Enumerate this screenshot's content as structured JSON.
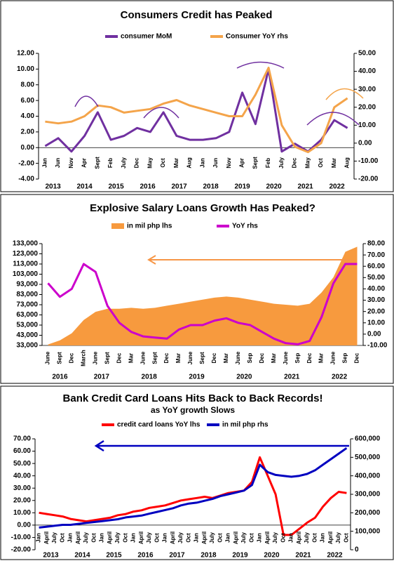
{
  "chart_data": [
    {
      "type": "line",
      "title": "Consumers Credit has Peaked",
      "categories": [
        "Jan",
        "Jun",
        "Nov",
        "Apr",
        "Sept",
        "Feb",
        "July",
        "Dec",
        "May",
        "Oct",
        "Mar",
        "Aug",
        "Jan",
        "Jun",
        "Nov",
        "Apr",
        "Sept",
        "Feb",
        "July",
        "Dec",
        "May",
        "Oct",
        "Mar",
        "Aug"
      ],
      "year_labels": [
        "2013",
        "2014",
        "2015",
        "2016",
        "2017",
        "2018",
        "2019",
        "2020",
        "2021",
        "2022"
      ],
      "series": [
        {
          "name": "consumer MoM",
          "color": "#7030a0",
          "values": [
            0.2,
            1.2,
            -0.5,
            1.5,
            4.5,
            1.0,
            1.5,
            2.5,
            2.0,
            4.5,
            1.5,
            1.0,
            1.0,
            1.2,
            2.0,
            7.0,
            3.0,
            10.0,
            -0.5,
            0.5,
            -0.5,
            1.0,
            3.5,
            2.5
          ]
        },
        {
          "name": "Consumer YoY rhs",
          "color": "#f4a44a",
          "axis": "y2",
          "values": [
            12,
            11,
            12,
            15,
            21,
            20,
            17,
            18,
            19,
            22,
            24,
            21,
            19,
            17,
            15,
            15,
            27,
            42,
            10,
            -2,
            -5,
            0,
            20,
            25
          ]
        }
      ],
      "ylim": [
        -4,
        12
      ],
      "yticks": [
        {
          "value": -4,
          "label": "-4.00"
        },
        {
          "value": -2,
          "label": "-2.00"
        },
        {
          "value": 0,
          "label": "0.00"
        },
        {
          "value": 2,
          "label": "2.00"
        },
        {
          "value": 4,
          "label": "4.00"
        },
        {
          "value": 6,
          "label": "6.00"
        },
        {
          "value": 8,
          "label": "8.00"
        },
        {
          "value": 10,
          "label": "10.00"
        },
        {
          "value": 12,
          "label": "12.00"
        }
      ],
      "y2lim": [
        -20,
        50
      ],
      "y2ticks": [
        {
          "value": -20,
          "label": "-20.00"
        },
        {
          "value": -10,
          "label": "-10.00"
        },
        {
          "value": 0,
          "label": "0.00"
        },
        {
          "value": 10,
          "label": "10.00"
        },
        {
          "value": 20,
          "label": "20.00"
        },
        {
          "value": 30,
          "label": "30.00"
        },
        {
          "value": 40,
          "label": "40.00"
        },
        {
          "value": 50,
          "label": "50.00"
        }
      ]
    },
    {
      "type": "area",
      "title": "Explosive Salary Loans Growth Has Peaked?",
      "categories": [
        "June",
        "Sept",
        "Dec",
        "March",
        "June",
        "Sept",
        "Dec",
        "Mar",
        "June",
        "Sept",
        "Dec",
        "Mar",
        "June",
        "Sept",
        "Dec",
        "Mar",
        "June",
        "Sep",
        "Dec",
        "Mar",
        "June",
        "Sep",
        "Dec",
        "Mar",
        "June",
        "Sep",
        "Dec"
      ],
      "year_labels": [
        "2016",
        "2017",
        "2018",
        "2019",
        "2020",
        "2021",
        "2022"
      ],
      "series": [
        {
          "name": "in mil php lhs",
          "color": "#f79a3e",
          "type": "area",
          "values": [
            34000,
            38000,
            45000,
            58000,
            66000,
            69000,
            69000,
            70000,
            69000,
            70000,
            72000,
            74000,
            76000,
            78000,
            80000,
            81000,
            80000,
            78000,
            76000,
            74000,
            73000,
            72000,
            74000,
            85000,
            100000,
            125000,
            130000
          ]
        },
        {
          "name": "YoY rhs",
          "color": "#cc00cc",
          "type": "line",
          "axis": "y2",
          "values": [
            45,
            33,
            40,
            62,
            55,
            25,
            10,
            2,
            -2,
            -3,
            -4,
            4,
            8,
            8,
            12,
            14,
            10,
            8,
            2,
            -4,
            -8,
            -9,
            -6,
            15,
            45,
            62,
            62
          ]
        }
      ],
      "ylim": [
        33000,
        133000
      ],
      "yticks": [
        {
          "value": 33000,
          "label": "33,000"
        },
        {
          "value": 43000,
          "label": "43,000"
        },
        {
          "value": 53000,
          "label": "53,000"
        },
        {
          "value": 63000,
          "label": "63,000"
        },
        {
          "value": 73000,
          "label": "73,000"
        },
        {
          "value": 83000,
          "label": "83,000"
        },
        {
          "value": 93000,
          "label": "93,000"
        },
        {
          "value": 103000,
          "label": "103,000"
        },
        {
          "value": 113000,
          "label": "113,000"
        },
        {
          "value": 123000,
          "label": "123,000"
        },
        {
          "value": 133000,
          "label": "133,000"
        }
      ],
      "y2lim": [
        -10,
        80
      ],
      "y2ticks": [
        {
          "value": -10,
          "label": "-10.00"
        },
        {
          "value": 0,
          "label": "0.00"
        },
        {
          "value": 10,
          "label": "10.00"
        },
        {
          "value": 20,
          "label": "20.00"
        },
        {
          "value": 30,
          "label": "30.00"
        },
        {
          "value": 40,
          "label": "40.00"
        },
        {
          "value": 50,
          "label": "50.00"
        },
        {
          "value": 60,
          "label": "60.00"
        },
        {
          "value": 70,
          "label": "70.00"
        },
        {
          "value": 80,
          "label": "80.00"
        }
      ]
    },
    {
      "type": "line",
      "title": "Bank Credit Card Loans Hits Back to Back Records!",
      "subtitle": "as YoY growth Slows",
      "categories": [
        "Jan",
        "April",
        "July",
        "Oct",
        "Jan",
        "April",
        "July",
        "Oct",
        "Jan",
        "April",
        "July",
        "Oct",
        "Jan",
        "April",
        "July",
        "Oct",
        "Jan",
        "April",
        "July",
        "Oct",
        "Jan",
        "April",
        "July",
        "Oct",
        "Jan",
        "April",
        "July",
        "Oct",
        "Jan",
        "April",
        "July",
        "Oct",
        "Jan",
        "April",
        "July",
        "Oct",
        "Jan",
        "April",
        "July",
        "Oct"
      ],
      "year_labels": [
        "2013",
        "2014",
        "2015",
        "2016",
        "2017",
        "2018",
        "2019",
        "2020",
        "2021",
        "2022"
      ],
      "series": [
        {
          "name": "credit card loans YoY lhs",
          "color": "#ff0000",
          "values": [
            10,
            9,
            8,
            7,
            5,
            4,
            3,
            4,
            5,
            6,
            8,
            9,
            11,
            12,
            14,
            15,
            16,
            18,
            20,
            21,
            22,
            23,
            22,
            24,
            26,
            27,
            28,
            35,
            55,
            40,
            25,
            -8,
            -8,
            -3,
            2,
            6,
            15,
            22,
            27,
            26
          ]
        },
        {
          "name": "in mil php rhs",
          "color": "#0000c0",
          "axis": "y2",
          "values": [
            120000,
            125000,
            130000,
            135000,
            135000,
            140000,
            145000,
            150000,
            155000,
            160000,
            165000,
            175000,
            180000,
            185000,
            195000,
            205000,
            215000,
            225000,
            240000,
            250000,
            255000,
            265000,
            275000,
            290000,
            300000,
            310000,
            320000,
            350000,
            460000,
            420000,
            405000,
            400000,
            395000,
            400000,
            410000,
            430000,
            460000,
            490000,
            520000,
            550000
          ]
        }
      ],
      "ylim": [
        -20,
        70
      ],
      "yticks": [
        {
          "value": -20,
          "label": "-20.00"
        },
        {
          "value": -10,
          "label": "-10.00"
        },
        {
          "value": 0,
          "label": "0.00"
        },
        {
          "value": 10,
          "label": "10.00"
        },
        {
          "value": 20,
          "label": "20.00"
        },
        {
          "value": 30,
          "label": "30.00"
        },
        {
          "value": 40,
          "label": "40.00"
        },
        {
          "value": 50,
          "label": "50.00"
        },
        {
          "value": 60,
          "label": "60.00"
        },
        {
          "value": 70,
          "label": "70.00"
        }
      ],
      "y2lim": [
        0,
        600000
      ],
      "y2ticks": [
        0,
        {
          "value": 100000,
          "label": "100,000"
        },
        {
          "value": 200000,
          "label": "200,000"
        },
        {
          "value": 300000,
          "label": "300,000"
        },
        {
          "value": 400000,
          "label": "400,000"
        },
        {
          "value": 500000,
          "label": "500,000"
        },
        {
          "value": 600000,
          "label": "600,000"
        }
      ]
    }
  ]
}
